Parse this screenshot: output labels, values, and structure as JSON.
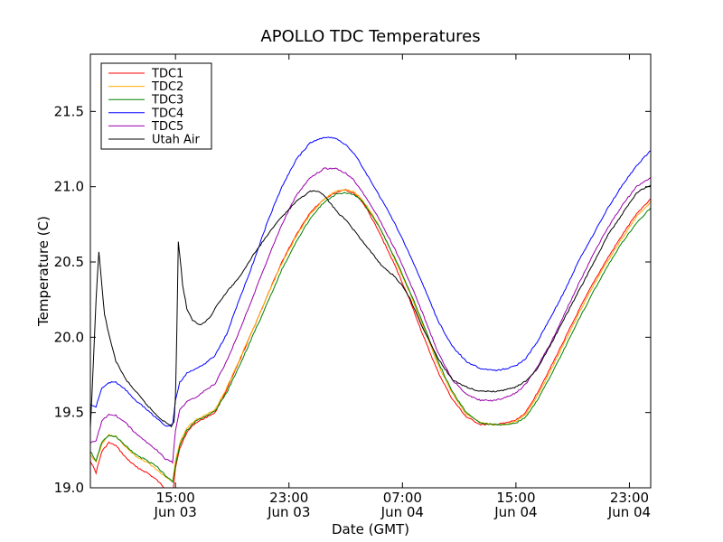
{
  "chart_data": {
    "type": "line",
    "title": "APOLLO TDC Temperatures",
    "xlabel": "Date (GMT)",
    "ylabel": "Temperature (C)",
    "xlim": [
      9,
      48.5
    ],
    "ylim": [
      19.0,
      21.88
    ],
    "x_unit": "hours since Jun 03 00:00 GMT",
    "yticks": [
      19.0,
      19.5,
      20.0,
      20.5,
      21.0,
      21.5
    ],
    "ytick_labels": [
      "19.0",
      "19.5",
      "20.0",
      "20.5",
      "21.0",
      "21.5"
    ],
    "xticks": [
      {
        "value": 15,
        "time": "15:00",
        "date": "Jun 03"
      },
      {
        "value": 23,
        "time": "23:00",
        "date": "Jun 03"
      },
      {
        "value": 31,
        "time": "07:00",
        "date": "Jun 04"
      },
      {
        "value": 39,
        "time": "15:00",
        "date": "Jun 04"
      },
      {
        "value": 47,
        "time": "23:00",
        "date": "Jun 04"
      }
    ],
    "grid": false,
    "legend_position": "top-left",
    "series": [
      {
        "name": "TDC1",
        "color": "#ff0000",
        "x": [
          9.0,
          9.4,
          9.8,
          10.3,
          10.8,
          11.5,
          12.2,
          13.0,
          13.7,
          14.3,
          14.8,
          15.0,
          15.3,
          15.8,
          16.4,
          17.0,
          17.8,
          18.6,
          19.5,
          20.5,
          21.5,
          22.5,
          23.5,
          24.5,
          25.5,
          26.3,
          27.0,
          27.5,
          28.0,
          28.5,
          29.0,
          29.5,
          30.5,
          31.5,
          32.5,
          33.5,
          34.5,
          35.5,
          36.5,
          37.5,
          38.3,
          39.0,
          39.7,
          40.5,
          41.5,
          42.5,
          43.5,
          44.5,
          45.5,
          46.5,
          47.5,
          48.5
        ],
        "y": [
          19.18,
          19.1,
          19.24,
          19.3,
          19.28,
          19.2,
          19.14,
          19.1,
          19.05,
          18.99,
          18.96,
          19.13,
          19.26,
          19.37,
          19.43,
          19.46,
          19.5,
          19.65,
          19.84,
          20.06,
          20.28,
          20.5,
          20.68,
          20.83,
          20.92,
          20.96,
          20.98,
          20.96,
          20.92,
          20.85,
          20.76,
          20.67,
          20.47,
          20.25,
          20.0,
          19.77,
          19.59,
          19.47,
          19.42,
          19.42,
          19.43,
          19.45,
          19.5,
          19.63,
          19.81,
          20.0,
          20.19,
          20.37,
          20.53,
          20.68,
          20.82,
          20.92
        ]
      },
      {
        "name": "TDC2",
        "color": "#ffaa00",
        "x": [
          9.0,
          9.4,
          9.8,
          10.3,
          10.8,
          11.5,
          12.2,
          13.0,
          13.7,
          14.3,
          14.8,
          15.0,
          15.3,
          15.8,
          16.4,
          17.0,
          17.8,
          18.6,
          19.5,
          20.5,
          21.5,
          22.5,
          23.5,
          24.5,
          25.5,
          26.3,
          27.0,
          27.5,
          28.0,
          28.5,
          29.0,
          29.5,
          30.5,
          31.5,
          32.5,
          33.5,
          34.5,
          35.5,
          36.5,
          37.5,
          38.3,
          39.0,
          39.7,
          40.5,
          41.5,
          42.5,
          43.5,
          44.5,
          45.5,
          46.5,
          47.5,
          48.5
        ],
        "y": [
          19.22,
          19.17,
          19.29,
          19.35,
          19.34,
          19.27,
          19.21,
          19.17,
          19.12,
          19.07,
          19.04,
          19.18,
          19.3,
          19.4,
          19.45,
          19.48,
          19.52,
          19.66,
          19.85,
          20.06,
          20.28,
          20.49,
          20.67,
          20.82,
          20.92,
          20.97,
          20.98,
          20.97,
          20.93,
          20.87,
          20.8,
          20.71,
          20.51,
          20.3,
          20.06,
          19.82,
          19.63,
          19.49,
          19.43,
          19.42,
          19.42,
          19.44,
          19.49,
          19.61,
          19.79,
          19.98,
          20.17,
          20.35,
          20.51,
          20.66,
          20.8,
          20.9
        ]
      },
      {
        "name": "TDC3",
        "color": "#008000",
        "x": [
          9.0,
          9.4,
          9.8,
          10.3,
          10.8,
          11.5,
          12.2,
          13.0,
          13.7,
          14.3,
          14.8,
          15.0,
          15.3,
          15.8,
          16.4,
          17.0,
          17.8,
          18.6,
          19.5,
          20.5,
          21.5,
          22.5,
          23.5,
          24.5,
          25.5,
          26.3,
          27.0,
          27.5,
          28.0,
          28.5,
          29.0,
          29.5,
          30.5,
          31.5,
          32.5,
          33.5,
          34.5,
          35.5,
          36.5,
          37.5,
          38.3,
          39.0,
          39.7,
          40.5,
          41.5,
          42.5,
          43.5,
          44.5,
          45.5,
          46.5,
          47.5,
          48.5
        ],
        "y": [
          19.24,
          19.18,
          19.3,
          19.35,
          19.34,
          19.28,
          19.22,
          19.18,
          19.14,
          19.08,
          19.04,
          19.15,
          19.28,
          19.38,
          19.44,
          19.47,
          19.51,
          19.63,
          19.81,
          20.02,
          20.23,
          20.45,
          20.63,
          20.79,
          20.9,
          20.95,
          20.96,
          20.95,
          20.92,
          20.86,
          20.79,
          20.71,
          20.52,
          20.31,
          20.08,
          19.84,
          19.64,
          19.5,
          19.43,
          19.42,
          19.42,
          19.43,
          19.47,
          19.58,
          19.75,
          19.94,
          20.13,
          20.31,
          20.48,
          20.63,
          20.76,
          20.86
        ]
      },
      {
        "name": "TDC4",
        "color": "#0000ff",
        "x": [
          9.0,
          9.4,
          9.8,
          10.3,
          10.8,
          11.5,
          12.2,
          13.0,
          13.7,
          14.3,
          14.8,
          15.0,
          15.3,
          15.8,
          16.4,
          17.0,
          17.8,
          18.6,
          19.5,
          20.5,
          21.5,
          22.5,
          23.5,
          24.5,
          25.5,
          26.3,
          27.0,
          27.5,
          28.0,
          28.5,
          29.0,
          29.5,
          30.5,
          31.5,
          32.5,
          33.5,
          34.5,
          35.5,
          36.5,
          37.5,
          38.3,
          39.0,
          39.7,
          40.5,
          41.5,
          42.5,
          43.5,
          44.5,
          45.5,
          46.5,
          47.5,
          48.5
        ],
        "y": [
          19.55,
          19.54,
          19.66,
          19.7,
          19.7,
          19.65,
          19.58,
          19.52,
          19.46,
          19.41,
          19.42,
          19.58,
          19.7,
          19.76,
          19.79,
          19.82,
          19.88,
          20.02,
          20.25,
          20.5,
          20.77,
          21.0,
          21.18,
          21.29,
          21.33,
          21.32,
          21.28,
          21.23,
          21.16,
          21.08,
          21.0,
          20.92,
          20.75,
          20.55,
          20.34,
          20.11,
          19.94,
          19.84,
          19.79,
          19.78,
          19.79,
          19.81,
          19.86,
          19.97,
          20.14,
          20.32,
          20.52,
          20.69,
          20.86,
          21.01,
          21.14,
          21.24
        ]
      },
      {
        "name": "TDC5",
        "color": "#9900aa",
        "x": [
          9.0,
          9.4,
          9.8,
          10.3,
          10.8,
          11.5,
          12.2,
          13.0,
          13.7,
          14.3,
          14.8,
          15.0,
          15.3,
          15.8,
          16.4,
          17.0,
          17.8,
          18.6,
          19.5,
          20.5,
          21.5,
          22.5,
          23.5,
          24.5,
          25.5,
          26.3,
          27.0,
          27.5,
          28.0,
          28.5,
          29.0,
          29.5,
          30.5,
          31.5,
          32.5,
          33.5,
          34.5,
          35.5,
          36.5,
          37.5,
          38.3,
          39.0,
          39.7,
          40.5,
          41.5,
          42.5,
          43.5,
          44.5,
          45.5,
          46.5,
          47.5,
          48.5
        ],
        "y": [
          19.3,
          19.31,
          19.44,
          19.49,
          19.48,
          19.43,
          19.36,
          19.3,
          19.25,
          19.19,
          19.17,
          19.38,
          19.52,
          19.57,
          19.6,
          19.64,
          19.69,
          19.84,
          20.04,
          20.28,
          20.52,
          20.75,
          20.94,
          21.06,
          21.12,
          21.12,
          21.09,
          21.05,
          20.99,
          20.92,
          20.84,
          20.76,
          20.58,
          20.37,
          20.14,
          19.9,
          19.72,
          19.62,
          19.58,
          19.58,
          19.6,
          19.63,
          19.69,
          19.8,
          19.97,
          20.17,
          20.37,
          20.56,
          20.73,
          20.88,
          21.0,
          21.06
        ]
      },
      {
        "name": "Utah Air",
        "color": "#000000",
        "x": [
          9.0,
          9.2,
          9.4,
          9.6,
          9.8,
          10.0,
          10.4,
          10.8,
          11.5,
          12.2,
          13.0,
          13.6,
          14.2,
          14.7,
          14.9,
          15.0,
          15.1,
          15.2,
          15.3,
          15.5,
          15.8,
          16.2,
          16.8,
          17.4,
          18.0,
          18.6,
          19.5,
          20.5,
          21.5,
          22.5,
          23.5,
          24.5,
          25.0,
          25.5,
          26.0,
          26.5,
          27.0,
          27.5,
          28.0,
          28.5,
          29.0,
          29.5,
          30.0,
          30.5,
          31.0,
          31.5,
          32.5,
          33.5,
          34.5,
          35.5,
          36.5,
          37.5,
          38.3,
          39.0,
          39.7,
          40.5,
          41.5,
          42.5,
          43.5,
          44.5,
          45.5,
          46.5,
          47.5,
          48.5
        ],
        "y": [
          19.4,
          19.8,
          20.25,
          20.57,
          20.35,
          20.15,
          19.98,
          19.84,
          19.72,
          19.64,
          19.55,
          19.49,
          19.44,
          19.41,
          19.44,
          19.62,
          20.05,
          20.63,
          20.55,
          20.35,
          20.19,
          20.11,
          20.08,
          20.13,
          20.22,
          20.3,
          20.4,
          20.55,
          20.68,
          20.8,
          20.9,
          20.97,
          20.97,
          20.94,
          20.88,
          20.82,
          20.78,
          20.72,
          20.66,
          20.6,
          20.54,
          20.48,
          20.44,
          20.4,
          20.34,
          20.26,
          20.05,
          19.86,
          19.72,
          19.67,
          19.64,
          19.64,
          19.65,
          19.67,
          19.71,
          19.79,
          19.96,
          20.14,
          20.32,
          20.5,
          20.68,
          20.82,
          20.96,
          21.01
        ]
      }
    ]
  }
}
